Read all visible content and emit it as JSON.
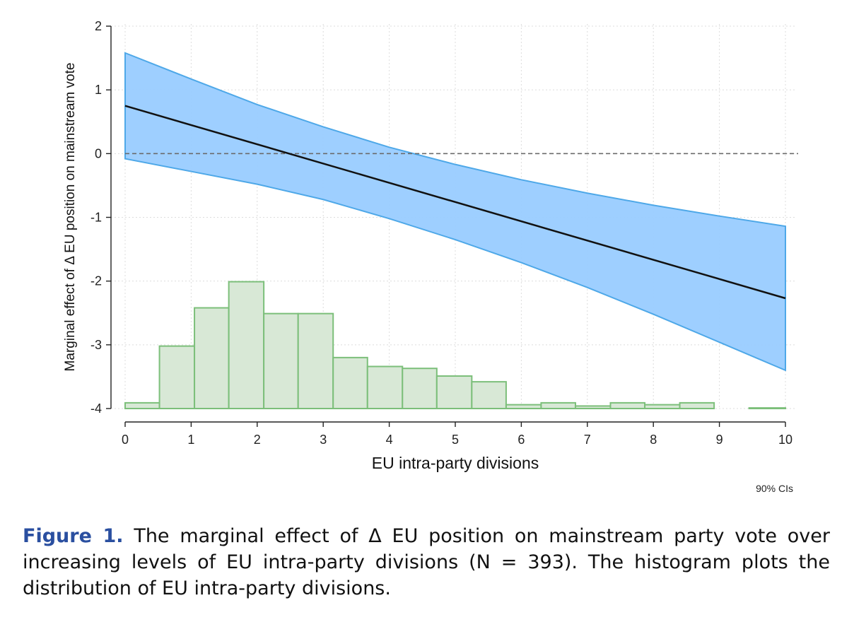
{
  "chart_data": {
    "type": "line",
    "xlabel": "EU intra-party divisions",
    "ylabel": "Marginal effect of Δ EU position on mainstream vote",
    "note": "90% CIs",
    "xlim": [
      0,
      10
    ],
    "ylim": [
      -4,
      2
    ],
    "xticks": [
      0,
      1,
      2,
      3,
      4,
      5,
      6,
      7,
      8,
      9,
      10
    ],
    "yticks": [
      -4,
      -3,
      -2,
      -1,
      0,
      1,
      2
    ],
    "grid": true,
    "reference_line": {
      "y": 0,
      "style": "dashed"
    },
    "series": [
      {
        "kind": "line",
        "x": [
          0,
          10
        ],
        "y": [
          0.75,
          -2.27
        ],
        "color": "#111111"
      },
      {
        "kind": "confidence_band",
        "x": [
          0,
          1,
          2,
          3,
          4,
          5,
          6,
          7,
          8,
          9,
          10
        ],
        "upper": [
          1.58,
          1.17,
          0.77,
          0.42,
          0.1,
          -0.17,
          -0.41,
          -0.62,
          -0.81,
          -0.98,
          -1.14
        ],
        "lower": [
          -0.08,
          -0.28,
          -0.48,
          -0.72,
          -1.02,
          -1.35,
          -1.71,
          -2.1,
          -2.52,
          -2.96,
          -3.4
        ],
        "color": "#99ccff",
        "edge_color": "#4ea8e8"
      },
      {
        "kind": "histogram",
        "bins": [
          {
            "x0": 0.0,
            "x1": 0.52,
            "top": -3.91
          },
          {
            "x0": 0.52,
            "x1": 1.05,
            "top": -3.02
          },
          {
            "x0": 1.05,
            "x1": 1.57,
            "top": -2.42
          },
          {
            "x0": 1.57,
            "x1": 2.1,
            "top": -2.01
          },
          {
            "x0": 2.1,
            "x1": 2.62,
            "top": -2.51
          },
          {
            "x0": 2.62,
            "x1": 3.15,
            "top": -2.51
          },
          {
            "x0": 3.15,
            "x1": 3.67,
            "top": -3.2
          },
          {
            "x0": 3.67,
            "x1": 4.2,
            "top": -3.34
          },
          {
            "x0": 4.2,
            "x1": 4.72,
            "top": -3.37
          },
          {
            "x0": 4.72,
            "x1": 5.25,
            "top": -3.49
          },
          {
            "x0": 5.25,
            "x1": 5.77,
            "top": -3.58
          },
          {
            "x0": 5.77,
            "x1": 6.3,
            "top": -3.94
          },
          {
            "x0": 6.3,
            "x1": 6.82,
            "top": -3.91
          },
          {
            "x0": 6.82,
            "x1": 7.35,
            "top": -3.96
          },
          {
            "x0": 7.35,
            "x1": 7.87,
            "top": -3.91
          },
          {
            "x0": 7.87,
            "x1": 8.4,
            "top": -3.94
          },
          {
            "x0": 8.4,
            "x1": 8.92,
            "top": -3.91
          },
          {
            "x0": 9.45,
            "x1": 10.0,
            "top": -3.99
          }
        ],
        "base": -4,
        "color": "#d8e8d6",
        "edge_color": "#7cbf7a"
      }
    ]
  },
  "caption": {
    "label": "Figure 1.",
    "text": "The marginal effect of Δ EU position on mainstream party vote over increasing levels of EU intra-party divisions (N = 393). The histogram plots the distribution of EU intra-party divisions."
  }
}
